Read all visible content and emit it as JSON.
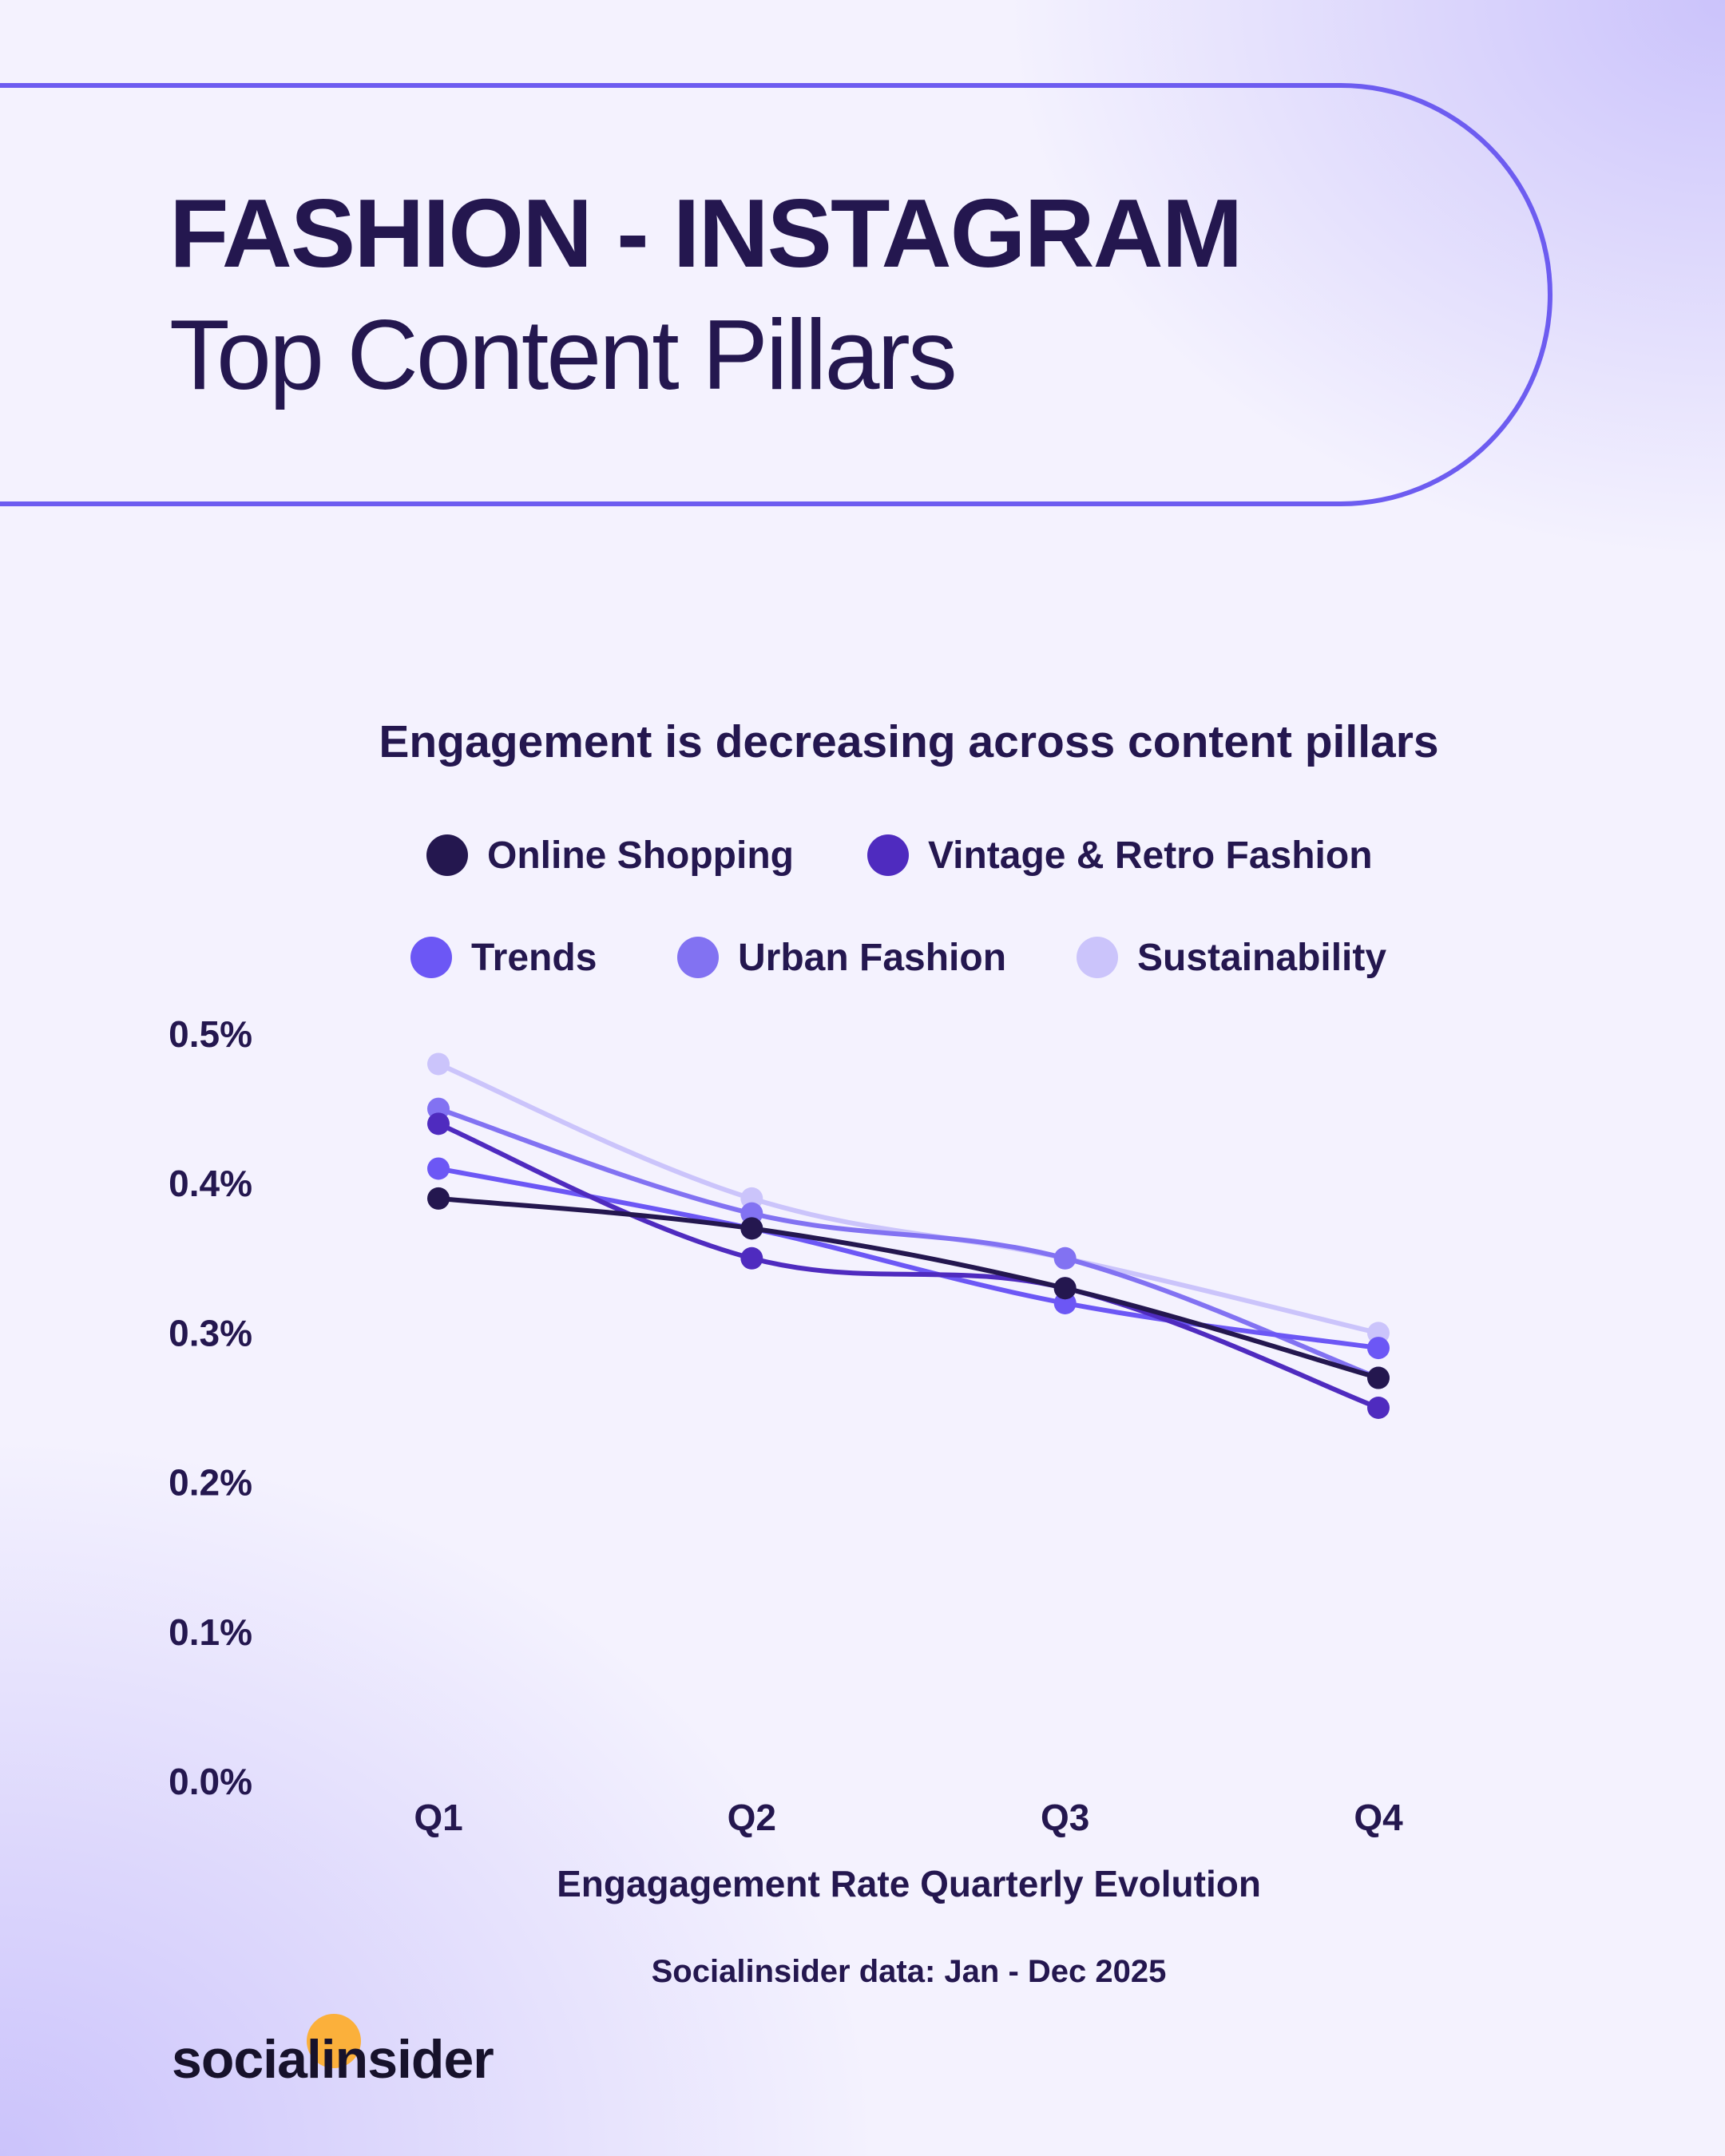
{
  "header": {
    "title": "FASHION - INSTAGRAM",
    "subtitle": "Top Content Pillars"
  },
  "chart_data": {
    "type": "line",
    "title": "Engagement is decreasing across content pillars",
    "xlabel": "Engagagement Rate Quarterly Evolution",
    "ylabel": "",
    "categories": [
      "Q1",
      "Q2",
      "Q3",
      "Q4"
    ],
    "ylim": [
      0,
      0.5
    ],
    "yticks": [
      "0.0%",
      "0.1%",
      "0.2%",
      "0.3%",
      "0.4%",
      "0.5%"
    ],
    "grid": false,
    "legend_position": "top",
    "series": [
      {
        "name": "Online Shopping",
        "color": "#24174f",
        "values": [
          0.39,
          0.37,
          0.33,
          0.27
        ]
      },
      {
        "name": "Vintage & Retro Fashion",
        "color": "#4f2bbf",
        "values": [
          0.44,
          0.35,
          0.33,
          0.25
        ]
      },
      {
        "name": "Trends",
        "color": "#6c57f5",
        "values": [
          0.41,
          0.37,
          0.32,
          0.29
        ]
      },
      {
        "name": "Urban Fashion",
        "color": "#8272f2",
        "values": [
          0.45,
          0.38,
          0.35,
          0.27
        ]
      },
      {
        "name": "Sustainability",
        "color": "#cbc4fb",
        "values": [
          0.48,
          0.39,
          0.35,
          0.3
        ]
      }
    ]
  },
  "footer": {
    "source": "Socialinsider data: Jan - Dec 2025",
    "logo": "socialinsider"
  }
}
